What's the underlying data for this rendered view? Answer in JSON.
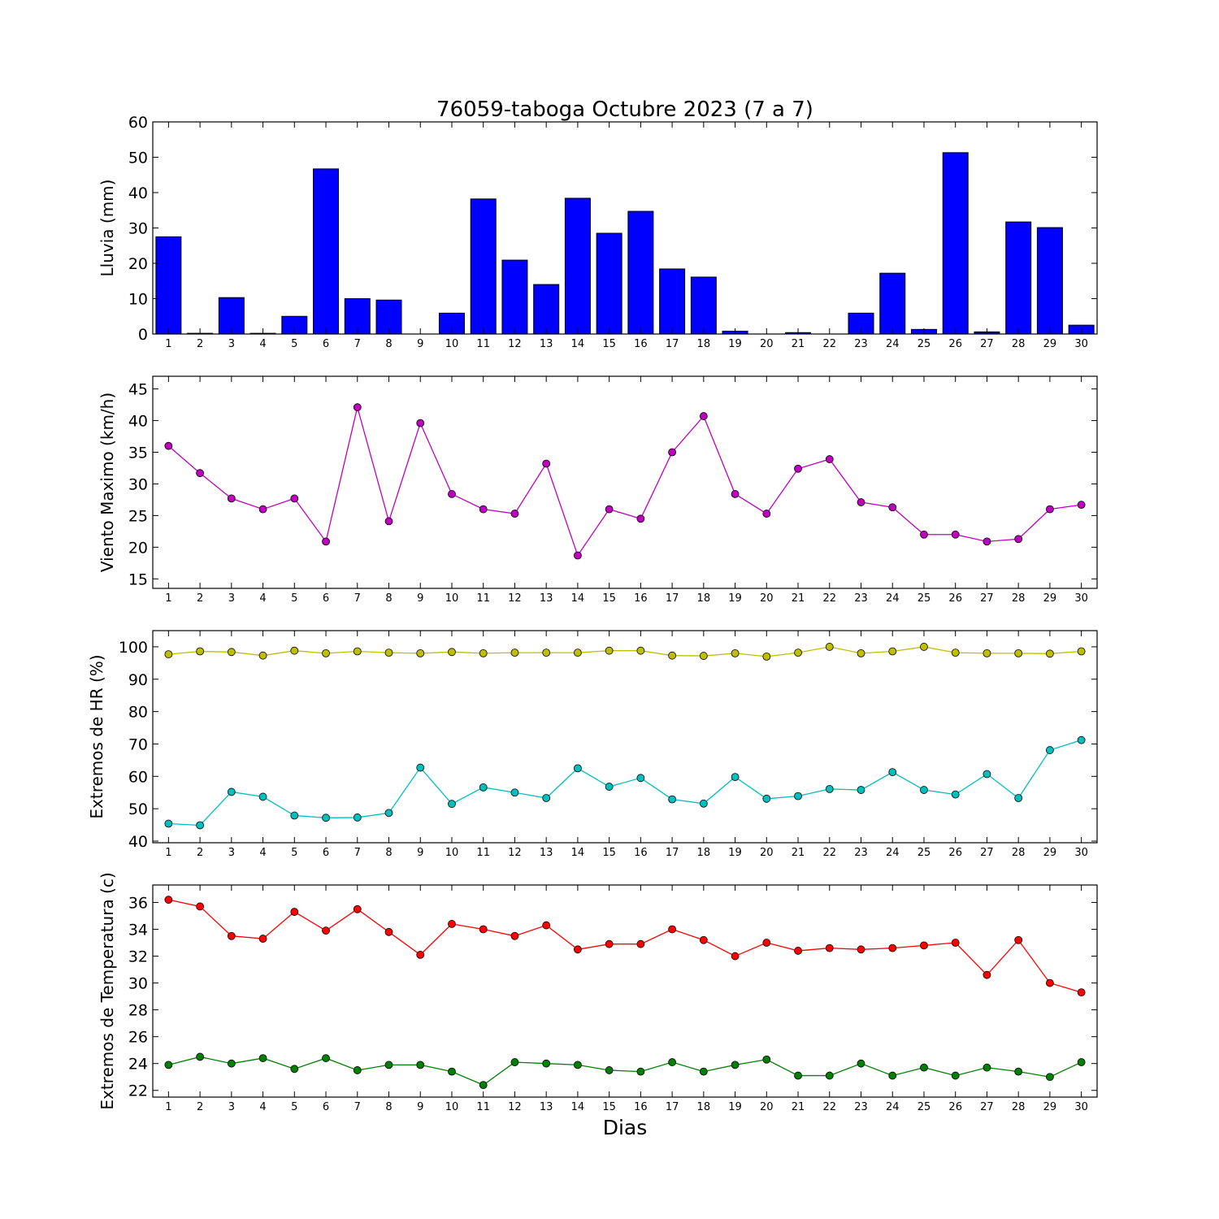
{
  "title": "76059-taboga Octubre 2023  (7 a 7)",
  "xlabel": "Dias",
  "chart_data": [
    {
      "type": "bar",
      "ylabel": "Lluvia (mm)",
      "x": [
        1,
        2,
        3,
        4,
        5,
        6,
        7,
        8,
        9,
        10,
        11,
        12,
        13,
        14,
        15,
        16,
        17,
        18,
        19,
        20,
        21,
        22,
        23,
        24,
        25,
        26,
        27,
        28,
        29,
        30
      ],
      "ylim": [
        0,
        60
      ],
      "yticks": [
        0,
        10,
        20,
        30,
        40,
        50,
        60
      ],
      "color": "#0000ff",
      "values": [
        27.5,
        0.2,
        10.3,
        0.2,
        5.0,
        46.7,
        10.0,
        9.6,
        0,
        5.9,
        38.2,
        20.9,
        14.0,
        38.4,
        28.5,
        34.7,
        18.4,
        16.1,
        0.8,
        0,
        0.4,
        0,
        5.9,
        17.2,
        1.3,
        51.3,
        0.6,
        31.7,
        30.1,
        2.5
      ]
    },
    {
      "type": "line",
      "ylabel": "Viento Maximo (km/h)",
      "x": [
        1,
        2,
        3,
        4,
        5,
        6,
        7,
        8,
        9,
        10,
        11,
        12,
        13,
        14,
        15,
        16,
        17,
        18,
        19,
        20,
        21,
        22,
        23,
        24,
        25,
        26,
        27,
        28,
        29,
        30
      ],
      "ylim": [
        13.5,
        47
      ],
      "yticks": [
        15,
        20,
        25,
        30,
        35,
        40,
        45
      ],
      "series": [
        {
          "color": "#bf00bf",
          "values": [
            36.0,
            31.7,
            27.7,
            26.0,
            27.7,
            20.9,
            42.1,
            24.1,
            39.6,
            28.4,
            26.0,
            25.3,
            33.2,
            18.7,
            26.0,
            24.5,
            35.0,
            40.7,
            28.4,
            25.3,
            32.4,
            33.9,
            27.1,
            26.3,
            22.0,
            22.0,
            20.9,
            21.3,
            26.0,
            26.7
          ]
        }
      ]
    },
    {
      "type": "line",
      "ylabel": "Extremos de HR (%)",
      "x": [
        1,
        2,
        3,
        4,
        5,
        6,
        7,
        8,
        9,
        10,
        11,
        12,
        13,
        14,
        15,
        16,
        17,
        18,
        19,
        20,
        21,
        22,
        23,
        24,
        25,
        26,
        27,
        28,
        29,
        30
      ],
      "ylim": [
        39.5,
        105
      ],
      "yticks": [
        40,
        50,
        60,
        70,
        80,
        90,
        100
      ],
      "series": [
        {
          "color": "#bfbf00",
          "values": [
            97.7,
            98.6,
            98.4,
            97.3,
            98.8,
            98.0,
            98.6,
            98.2,
            98.0,
            98.4,
            98.0,
            98.2,
            98.2,
            98.2,
            98.8,
            98.8,
            97.3,
            97.2,
            98.0,
            97.0,
            98.2,
            100.0,
            98.0,
            98.6,
            100.0,
            98.2,
            98.0,
            98.0,
            97.9,
            98.6
          ]
        },
        {
          "color": "#00bfbf",
          "values": [
            45.4,
            44.9,
            55.2,
            53.7,
            47.9,
            47.2,
            47.3,
            48.7,
            62.7,
            51.5,
            56.6,
            55.0,
            53.3,
            62.5,
            56.8,
            59.5,
            52.9,
            51.6,
            59.8,
            53.1,
            53.9,
            56.1,
            55.8,
            61.3,
            55.8,
            54.4,
            60.7,
            53.3,
            68.1,
            71.2
          ]
        }
      ]
    },
    {
      "type": "line",
      "ylabel": "Extremos de Temperatura (c)",
      "x": [
        1,
        2,
        3,
        4,
        5,
        6,
        7,
        8,
        9,
        10,
        11,
        12,
        13,
        14,
        15,
        16,
        17,
        18,
        19,
        20,
        21,
        22,
        23,
        24,
        25,
        26,
        27,
        28,
        29,
        30
      ],
      "ylim": [
        21.5,
        37.3
      ],
      "yticks": [
        22,
        24,
        26,
        28,
        30,
        32,
        34,
        36
      ],
      "series": [
        {
          "color": "#ff0000",
          "values": [
            36.2,
            35.7,
            33.5,
            33.3,
            35.3,
            33.9,
            35.5,
            33.8,
            32.1,
            34.4,
            34.0,
            33.5,
            34.3,
            32.5,
            32.9,
            32.9,
            34.0,
            33.2,
            32.0,
            33.0,
            32.4,
            32.6,
            32.5,
            32.6,
            32.8,
            33.0,
            30.6,
            33.2,
            30.0,
            29.3
          ]
        },
        {
          "color": "#008000",
          "values": [
            23.9,
            24.5,
            24.0,
            24.4,
            23.6,
            24.4,
            23.5,
            23.9,
            23.9,
            23.4,
            22.4,
            24.1,
            24.0,
            23.9,
            23.5,
            23.4,
            24.1,
            23.4,
            23.9,
            24.3,
            23.1,
            23.1,
            24.0,
            23.1,
            23.7,
            23.1,
            23.7,
            23.4,
            23.0,
            24.1
          ]
        }
      ]
    }
  ]
}
